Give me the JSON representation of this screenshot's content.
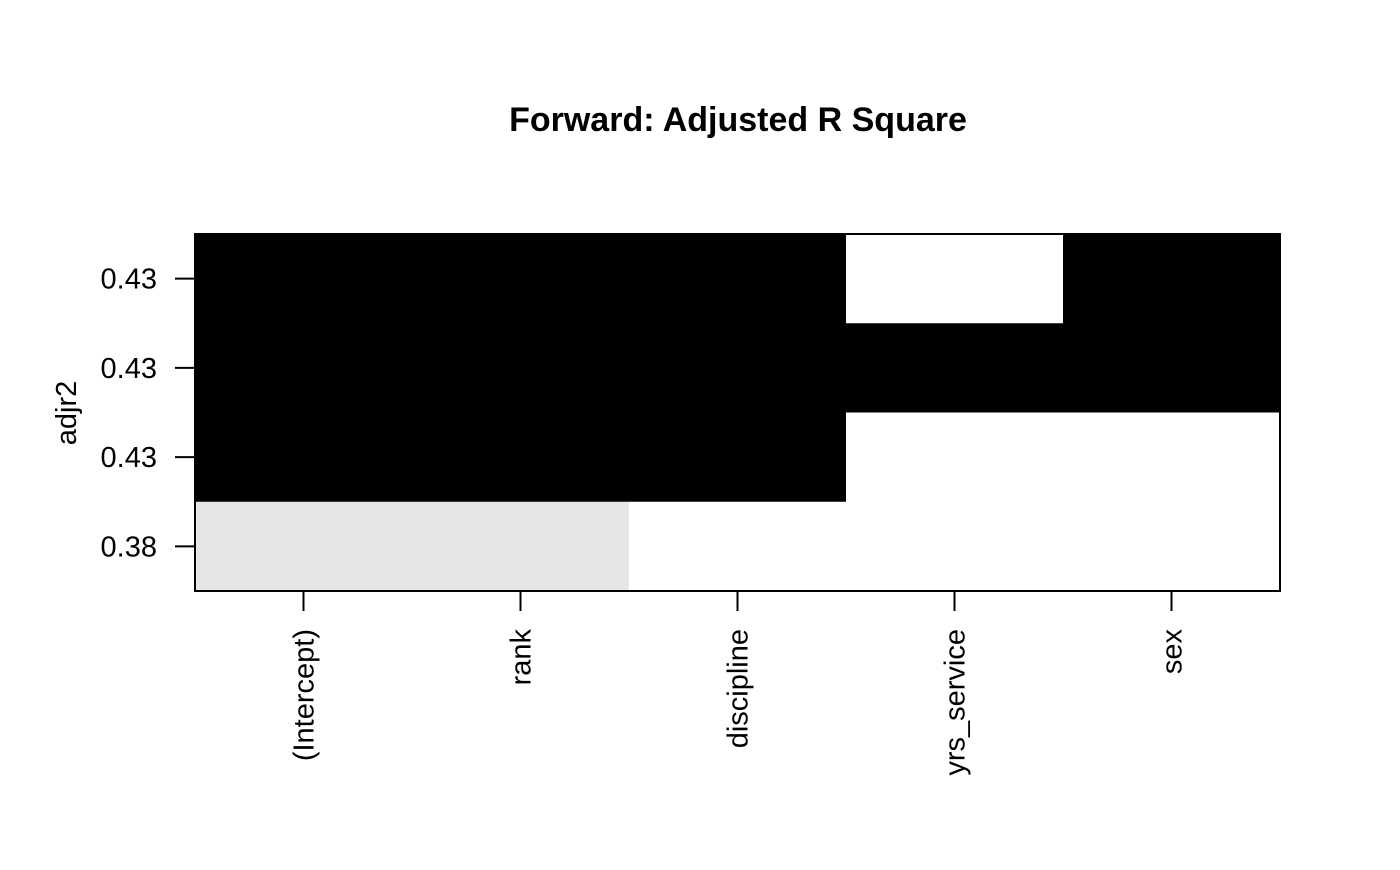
{
  "chart_data": {
    "type": "heatmap",
    "title": "Forward: Adjusted R Square",
    "xlabel": "",
    "ylabel": "adjr2",
    "columns": [
      "(Intercept)",
      "rank",
      "discipline",
      "yrs_service",
      "sex"
    ],
    "rows": [
      "0.43",
      "0.43",
      "0.43",
      "0.38"
    ],
    "cell_values": [
      [
        1,
        1,
        1,
        0,
        1
      ],
      [
        1,
        1,
        1,
        1,
        1
      ],
      [
        1,
        1,
        1,
        0,
        0
      ],
      [
        0.1,
        0.1,
        0,
        0,
        0
      ]
    ],
    "value_range": [
      0,
      1
    ],
    "colors": {
      "included_best": "#000000",
      "included_low": "#e6e6e6",
      "excluded": "#ffffff",
      "frame": "#000000"
    }
  }
}
